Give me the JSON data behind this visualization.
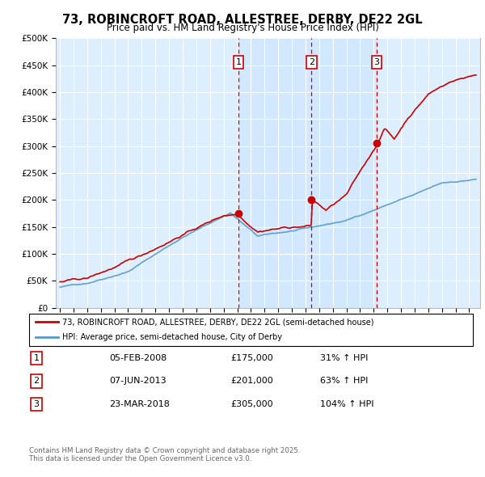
{
  "title": "73, ROBINCROFT ROAD, ALLESTREE, DERBY, DE22 2GL",
  "subtitle": "Price paid vs. HM Land Registry's House Price Index (HPI)",
  "sale_info": [
    [
      "1",
      "05-FEB-2008",
      "£175,000",
      "31% ↑ HPI"
    ],
    [
      "2",
      "07-JUN-2013",
      "£201,000",
      "63% ↑ HPI"
    ],
    [
      "3",
      "23-MAR-2018",
      "£305,000",
      "104% ↑ HPI"
    ]
  ],
  "legend_line1": "73, ROBINCROFT ROAD, ALLESTREE, DERBY, DE22 2GL (semi-detached house)",
  "legend_line2": "HPI: Average price, semi-detached house, City of Derby",
  "footer1": "Contains HM Land Registry data © Crown copyright and database right 2025.",
  "footer2": "This data is licensed under the Open Government Licence v3.0.",
  "red_color": "#cc0000",
  "blue_color": "#5599cc",
  "shade_color": "#ddeeff",
  "bg_color": "#ddeeff",
  "grid_color": "#ffffff",
  "ylim": [
    0,
    500000
  ],
  "xlim_start": 1994.7,
  "xlim_end": 2025.8,
  "sale_year_floats": [
    2008.09,
    2013.44,
    2018.22
  ],
  "sale_prices": [
    175000,
    201000,
    305000
  ]
}
